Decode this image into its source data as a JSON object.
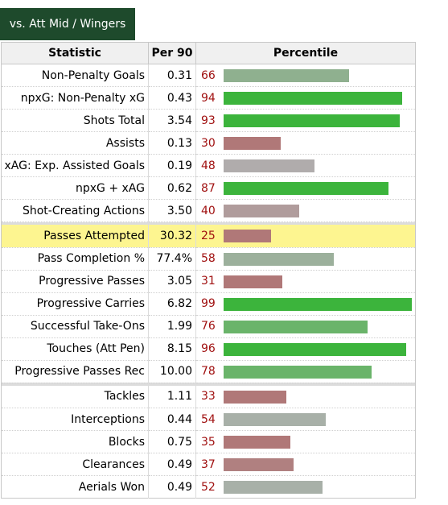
{
  "tab": {
    "label": "vs. Att Mid / Wingers"
  },
  "headers": {
    "statistic": "Statistic",
    "per90": "Per 90",
    "percentile": "Percentile"
  },
  "colors": {
    "high": "#3cb43c",
    "mid_high": "#6ab46a",
    "mid": "#8fb08f",
    "neutral": "#a8b0a8",
    "mid_low": "#b09c9c",
    "low": "#b07878",
    "highlight_row": "#fdf590",
    "tab_bg": "#1e4a2c"
  },
  "groups": [
    {
      "rows": [
        {
          "stat": "Non-Penalty Goals",
          "per90": "0.31",
          "percentile": 66,
          "color": "#8fb08f"
        },
        {
          "stat": "npxG: Non-Penalty xG",
          "per90": "0.43",
          "percentile": 94,
          "color": "#3cb43c"
        },
        {
          "stat": "Shots Total",
          "per90": "3.54",
          "percentile": 93,
          "color": "#3cb43c"
        },
        {
          "stat": "Assists",
          "per90": "0.13",
          "percentile": 30,
          "color": "#b07878"
        },
        {
          "stat": "xAG: Exp. Assisted Goals",
          "per90": "0.19",
          "percentile": 48,
          "color": "#b0acac"
        },
        {
          "stat": "npxG + xAG",
          "per90": "0.62",
          "percentile": 87,
          "color": "#3cb43c"
        },
        {
          "stat": "Shot-Creating Actions",
          "per90": "3.50",
          "percentile": 40,
          "color": "#b09c9c"
        }
      ]
    },
    {
      "rows": [
        {
          "stat": "Passes Attempted",
          "per90": "30.32",
          "percentile": 25,
          "color": "#b07878",
          "highlight": true
        },
        {
          "stat": "Pass Completion %",
          "per90": "77.4%",
          "percentile": 58,
          "color": "#9cb09c"
        },
        {
          "stat": "Progressive Passes",
          "per90": "3.05",
          "percentile": 31,
          "color": "#b07878"
        },
        {
          "stat": "Progressive Carries",
          "per90": "6.82",
          "percentile": 99,
          "color": "#3cb43c"
        },
        {
          "stat": "Successful Take-Ons",
          "per90": "1.99",
          "percentile": 76,
          "color": "#6ab46a"
        },
        {
          "stat": "Touches (Att Pen)",
          "per90": "8.15",
          "percentile": 96,
          "color": "#3cb43c"
        },
        {
          "stat": "Progressive Passes Rec",
          "per90": "10.00",
          "percentile": 78,
          "color": "#6ab46a"
        }
      ]
    },
    {
      "rows": [
        {
          "stat": "Tackles",
          "per90": "1.11",
          "percentile": 33,
          "color": "#b07878"
        },
        {
          "stat": "Interceptions",
          "per90": "0.44",
          "percentile": 54,
          "color": "#a8b0a8"
        },
        {
          "stat": "Blocks",
          "per90": "0.75",
          "percentile": 35,
          "color": "#b07878"
        },
        {
          "stat": "Clearances",
          "per90": "0.49",
          "percentile": 37,
          "color": "#b08080"
        },
        {
          "stat": "Aerials Won",
          "per90": "0.49",
          "percentile": 52,
          "color": "#a8b0a8"
        }
      ]
    }
  ]
}
